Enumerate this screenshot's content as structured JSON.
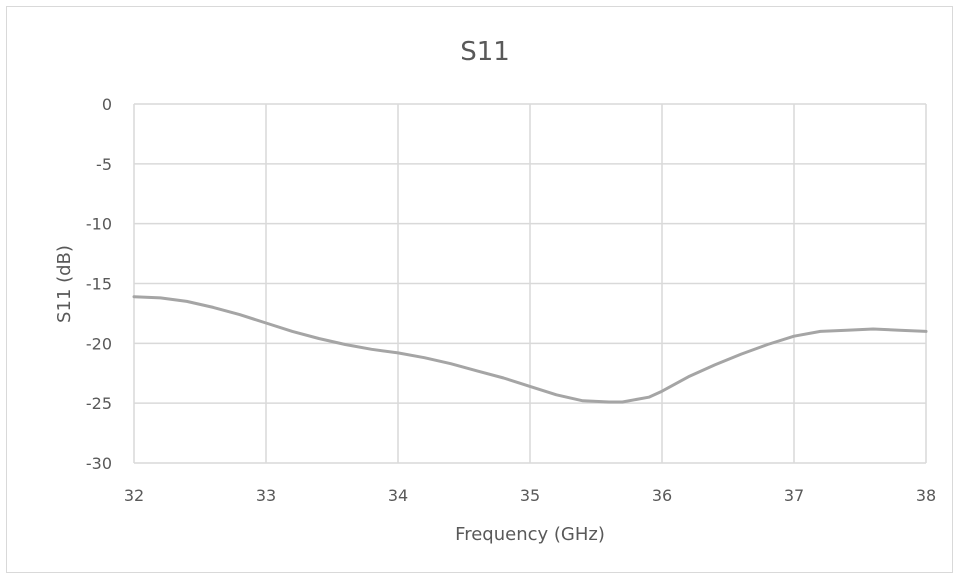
{
  "chart_data": {
    "type": "line",
    "title": "S11",
    "xlabel": "Frequency (GHz)",
    "ylabel": "S11 (dB)",
    "xlim": [
      32,
      38
    ],
    "ylim": [
      -30,
      0
    ],
    "xticks": [
      32,
      33,
      34,
      35,
      36,
      37,
      38
    ],
    "yticks": [
      0,
      -5,
      -10,
      -15,
      -20,
      -25,
      -30
    ],
    "grid": true,
    "legend": "none",
    "series": [
      {
        "color": "#a5a5a5",
        "x": [
          32.0,
          32.2,
          32.4,
          32.6,
          32.8,
          33.0,
          33.2,
          33.4,
          33.6,
          33.8,
          34.0,
          34.2,
          34.4,
          34.6,
          34.8,
          35.0,
          35.2,
          35.4,
          35.6,
          35.7,
          35.9,
          36.0,
          36.2,
          36.4,
          36.6,
          36.8,
          37.0,
          37.2,
          37.4,
          37.6,
          37.8,
          38.0
        ],
        "y": [
          -16.1,
          -16.2,
          -16.5,
          -17.0,
          -17.6,
          -18.3,
          -19.0,
          -19.6,
          -20.1,
          -20.5,
          -20.8,
          -21.2,
          -21.7,
          -22.3,
          -22.9,
          -23.6,
          -24.3,
          -24.8,
          -24.9,
          -24.9,
          -24.5,
          -24.0,
          -22.8,
          -21.8,
          -20.9,
          -20.1,
          -19.4,
          -19.0,
          -18.9,
          -18.8,
          -18.9,
          -19.0
        ]
      }
    ]
  }
}
